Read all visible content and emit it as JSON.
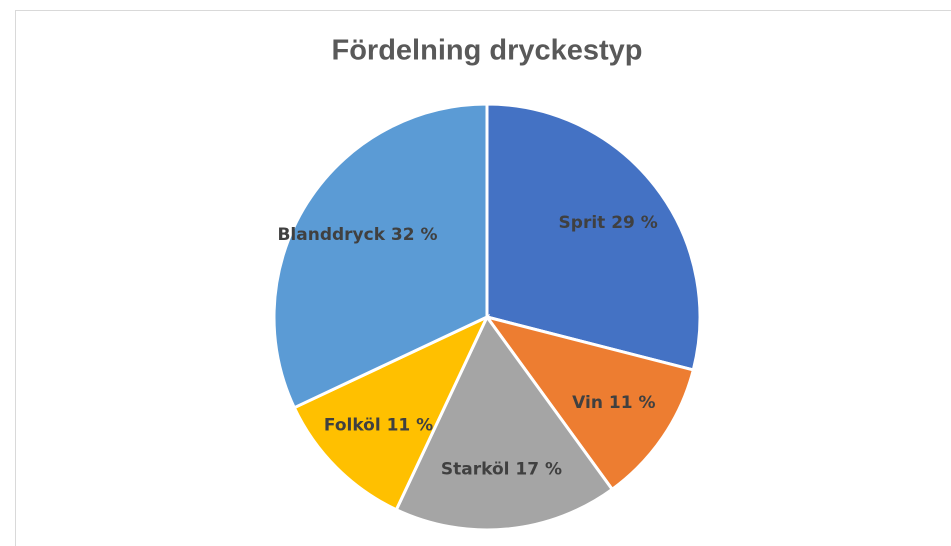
{
  "chart_data": {
    "type": "pie",
    "title": "Fördelning dryckestyp",
    "values": [
      29,
      11,
      17,
      11,
      32
    ],
    "value_labels": [
      "Sprit 29 %",
      "Vin 11 %",
      "Starköl 17 %",
      "Folköl 11 %",
      "Blanddryck 32 %"
    ],
    "colors": [
      "#4472c4",
      "#ed7d31",
      "#a5a5a5",
      "#ffc000",
      "#5b9bd5"
    ]
  }
}
